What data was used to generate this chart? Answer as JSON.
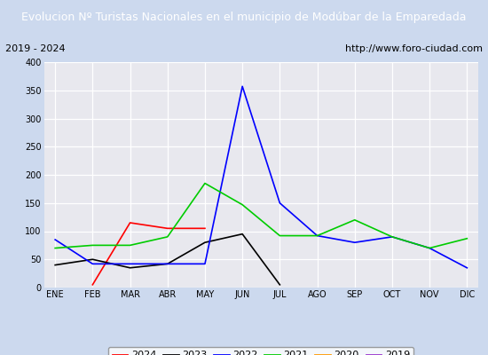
{
  "title": "Evolucion Nº Turistas Nacionales en el municipio de Modúbar de la Emparedada",
  "subtitle_left": "2019 - 2024",
  "subtitle_right": "http://www.foro-ciudad.com",
  "x_labels": [
    "ENE",
    "FEB",
    "MAR",
    "ABR",
    "MAY",
    "JUN",
    "JUL",
    "AGO",
    "SEP",
    "OCT",
    "NOV",
    "DIC"
  ],
  "ylim": [
    0,
    400
  ],
  "yticks": [
    0,
    50,
    100,
    150,
    200,
    250,
    300,
    350,
    400
  ],
  "series": {
    "2024": {
      "color": "#ff0000",
      "values": [
        null,
        5,
        115,
        105,
        105,
        null,
        null,
        null,
        null,
        null,
        null,
        null
      ]
    },
    "2023": {
      "color": "#000000",
      "values": [
        40,
        50,
        35,
        42,
        80,
        95,
        5,
        null,
        null,
        null,
        null,
        null
      ]
    },
    "2022": {
      "color": "#0000ff",
      "values": [
        85,
        42,
        42,
        42,
        42,
        357,
        150,
        92,
        80,
        90,
        70,
        35
      ]
    },
    "2021": {
      "color": "#00cc00",
      "values": [
        70,
        75,
        75,
        90,
        185,
        147,
        92,
        92,
        120,
        90,
        70,
        87
      ]
    },
    "2020": {
      "color": "#ff9900",
      "values": [
        null,
        null,
        null,
        null,
        null,
        null,
        null,
        null,
        null,
        null,
        null,
        null
      ]
    },
    "2019": {
      "color": "#9933cc",
      "values": [
        null,
        null,
        null,
        null,
        null,
        null,
        null,
        null,
        null,
        null,
        null,
        null
      ]
    }
  },
  "background_color": "#ccd9ee",
  "plot_bg_color": "#e8e8ee",
  "grid_color": "#ffffff",
  "title_bg_color": "#4a6eaa",
  "title_text_color": "#ffffff",
  "subtitle_bg_color": "#ffffff",
  "legend_order": [
    "2024",
    "2023",
    "2022",
    "2021",
    "2020",
    "2019"
  ],
  "title_fontsize": 9,
  "subtitle_fontsize": 8,
  "tick_fontsize": 7,
  "legend_fontsize": 8
}
